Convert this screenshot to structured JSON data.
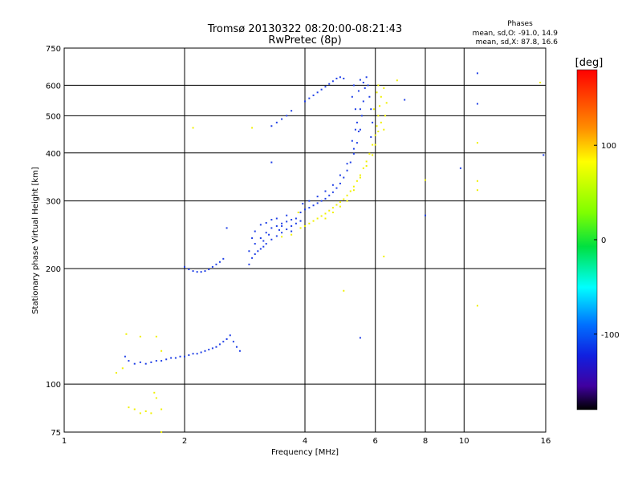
{
  "title": "Tromsø 20130322 08:20:00-08:21:43",
  "subtitle": "RwPretec (8p)",
  "stats": {
    "header": "Phases",
    "line_o": "mean, sd,O: -91.0, 14.9",
    "line_x": "mean, sd,X: 87.8, 16.6"
  },
  "colorbar": {
    "label": "[deg]",
    "min": -180,
    "max": 180,
    "tick_values": [
      100,
      0,
      -100
    ],
    "tick_labels": [
      "100",
      "0",
      "-100"
    ]
  },
  "colors": {
    "o_mode": "#1f3fe6",
    "x_mode": "#f0f000"
  },
  "chart_data": {
    "type": "scatter",
    "title": "Tromsø 20130322 08:20:00-08:21:43",
    "subtitle": "RwPretec (8p)",
    "xlabel": "Frequency [MHz]",
    "ylabel": "Stationary phase Virtual Height [km]",
    "x_scale": "log",
    "y_scale": "log",
    "xlim": [
      1,
      16
    ],
    "ylim": [
      75,
      750
    ],
    "xticks": [
      1,
      2,
      4,
      6,
      8,
      10,
      16
    ],
    "xtick_labels": [
      "1",
      "2",
      "4",
      "6",
      "8",
      "10",
      "16"
    ],
    "yticks": [
      75,
      100,
      200,
      300,
      400,
      500,
      600,
      750
    ],
    "ytick_labels": [
      "75",
      "100",
      "200",
      "300",
      "400",
      "500",
      "600",
      "750"
    ],
    "grid": true,
    "series": [
      {
        "mode": "O",
        "color": "#1f3fe6",
        "points": [
          [
            1.42,
            118
          ],
          [
            1.45,
            115
          ],
          [
            1.5,
            113
          ],
          [
            1.55,
            114
          ],
          [
            1.6,
            113
          ],
          [
            1.65,
            114
          ],
          [
            1.7,
            115
          ],
          [
            1.75,
            115
          ],
          [
            1.8,
            116
          ],
          [
            1.85,
            117
          ],
          [
            1.9,
            117
          ],
          [
            1.95,
            118
          ],
          [
            2.0,
            118
          ],
          [
            2.05,
            119
          ],
          [
            2.1,
            120
          ],
          [
            2.15,
            120
          ],
          [
            2.2,
            121
          ],
          [
            2.25,
            122
          ],
          [
            2.3,
            123
          ],
          [
            2.35,
            124
          ],
          [
            2.4,
            125
          ],
          [
            2.45,
            127
          ],
          [
            2.5,
            129
          ],
          [
            2.55,
            131
          ],
          [
            2.6,
            134
          ],
          [
            2.65,
            129
          ],
          [
            2.7,
            125
          ],
          [
            2.75,
            122
          ],
          [
            2.0,
            202
          ],
          [
            2.05,
            199
          ],
          [
            2.1,
            197
          ],
          [
            2.15,
            196
          ],
          [
            2.2,
            196
          ],
          [
            2.25,
            197
          ],
          [
            2.3,
            199
          ],
          [
            2.35,
            202
          ],
          [
            2.4,
            205
          ],
          [
            2.45,
            208
          ],
          [
            2.5,
            212
          ],
          [
            2.9,
            205
          ],
          [
            2.95,
            213
          ],
          [
            3.0,
            218
          ],
          [
            3.05,
            222
          ],
          [
            3.1,
            225
          ],
          [
            3.15,
            228
          ],
          [
            3.2,
            232
          ],
          [
            3.3,
            238
          ],
          [
            3.4,
            243
          ],
          [
            3.5,
            248
          ],
          [
            3.6,
            253
          ],
          [
            3.7,
            258
          ],
          [
            3.8,
            262
          ],
          [
            3.9,
            266
          ],
          [
            2.9,
            222
          ],
          [
            3.0,
            232
          ],
          [
            3.1,
            240
          ],
          [
            3.2,
            248
          ],
          [
            3.3,
            255
          ],
          [
            3.4,
            258
          ],
          [
            3.5,
            262
          ],
          [
            3.6,
            265
          ],
          [
            3.7,
            268
          ],
          [
            3.8,
            270
          ],
          [
            3.0,
            250
          ],
          [
            3.2,
            263
          ],
          [
            3.4,
            270
          ],
          [
            3.6,
            275
          ],
          [
            2.95,
            240
          ],
          [
            3.1,
            260
          ],
          [
            3.3,
            268
          ],
          [
            3.5,
            258
          ],
          [
            3.7,
            250
          ],
          [
            3.25,
            245
          ],
          [
            3.45,
            252
          ],
          [
            3.15,
            236
          ],
          [
            3.9,
            280
          ],
          [
            4.0,
            285
          ],
          [
            4.1,
            288
          ],
          [
            4.2,
            292
          ],
          [
            4.3,
            296
          ],
          [
            4.4,
            300
          ],
          [
            4.5,
            304
          ],
          [
            4.6,
            310
          ],
          [
            4.7,
            316
          ],
          [
            4.8,
            324
          ],
          [
            4.9,
            333
          ],
          [
            5.0,
            345
          ],
          [
            5.1,
            360
          ],
          [
            5.2,
            378
          ],
          [
            5.3,
            398
          ],
          [
            5.4,
            425
          ],
          [
            5.5,
            460
          ],
          [
            5.55,
            500
          ],
          [
            5.6,
            545
          ],
          [
            5.65,
            590
          ],
          [
            5.7,
            630
          ],
          [
            3.95,
            295
          ],
          [
            4.1,
            300
          ],
          [
            4.3,
            308
          ],
          [
            4.5,
            318
          ],
          [
            4.7,
            330
          ],
          [
            4.9,
            350
          ],
          [
            5.1,
            375
          ],
          [
            5.3,
            410
          ],
          [
            5.45,
            455
          ],
          [
            5.5,
            520
          ],
          [
            5.6,
            610
          ],
          [
            5.75,
            600
          ],
          [
            5.8,
            560
          ],
          [
            5.85,
            520
          ],
          [
            5.9,
            480
          ],
          [
            5.85,
            440
          ],
          [
            5.25,
            560
          ],
          [
            5.3,
            600
          ],
          [
            5.35,
            520
          ],
          [
            5.4,
            480
          ],
          [
            5.45,
            580
          ],
          [
            5.5,
            620
          ],
          [
            5.35,
            460
          ],
          [
            5.25,
            430
          ],
          [
            3.3,
            470
          ],
          [
            3.4,
            480
          ],
          [
            3.5,
            490
          ],
          [
            3.6,
            500
          ],
          [
            3.7,
            515
          ],
          [
            4.0,
            545
          ],
          [
            4.1,
            555
          ],
          [
            4.2,
            565
          ],
          [
            4.3,
            575
          ],
          [
            4.4,
            585
          ],
          [
            4.5,
            595
          ],
          [
            4.6,
            605
          ],
          [
            4.7,
            615
          ],
          [
            4.8,
            625
          ],
          [
            4.9,
            630
          ],
          [
            5.0,
            625
          ],
          [
            2.55,
            255
          ],
          [
            3.3,
            378
          ],
          [
            5.5,
            132
          ],
          [
            8.0,
            275
          ],
          [
            7.1,
            550
          ],
          [
            9.8,
            365
          ],
          [
            10.8,
            537
          ],
          [
            10.8,
            645
          ],
          [
            15.8,
            395
          ]
        ]
      },
      {
        "mode": "X",
        "color": "#f0f000",
        "points": [
          [
            1.4,
            110
          ],
          [
            1.45,
            87
          ],
          [
            1.5,
            86
          ],
          [
            1.55,
            84
          ],
          [
            1.6,
            85
          ],
          [
            1.65,
            84
          ],
          [
            1.7,
            92
          ],
          [
            1.75,
            86
          ],
          [
            3.9,
            255
          ],
          [
            4.0,
            258
          ],
          [
            4.1,
            262
          ],
          [
            4.2,
            266
          ],
          [
            4.3,
            270
          ],
          [
            4.4,
            274
          ],
          [
            4.5,
            278
          ],
          [
            4.6,
            283
          ],
          [
            4.7,
            288
          ],
          [
            4.8,
            293
          ],
          [
            4.9,
            298
          ],
          [
            5.0,
            303
          ],
          [
            5.1,
            310
          ],
          [
            5.2,
            318
          ],
          [
            5.3,
            327
          ],
          [
            5.4,
            338
          ],
          [
            5.5,
            350
          ],
          [
            5.6,
            365
          ],
          [
            5.7,
            380
          ],
          [
            5.8,
            398
          ],
          [
            5.9,
            420
          ],
          [
            6.0,
            445
          ],
          [
            6.05,
            470
          ],
          [
            6.1,
            500
          ],
          [
            6.15,
            530
          ],
          [
            6.2,
            560
          ],
          [
            4.5,
            270
          ],
          [
            4.7,
            280
          ],
          [
            4.9,
            290
          ],
          [
            5.1,
            300
          ],
          [
            5.3,
            320
          ],
          [
            5.5,
            345
          ],
          [
            5.7,
            370
          ],
          [
            5.9,
            395
          ],
          [
            6.0,
            420
          ],
          [
            6.1,
            455
          ],
          [
            6.2,
            480
          ],
          [
            5.95,
            520
          ],
          [
            6.05,
            575
          ],
          [
            6.1,
            600
          ],
          [
            6.3,
            590
          ],
          [
            6.4,
            540
          ],
          [
            6.35,
            500
          ],
          [
            6.3,
            460
          ],
          [
            3.85,
            280
          ],
          [
            3.7,
            245
          ],
          [
            3.5,
            242
          ],
          [
            6.3,
            215
          ],
          [
            5.0,
            175
          ],
          [
            2.1,
            465
          ],
          [
            2.95,
            465
          ],
          [
            6.8,
            618
          ],
          [
            8.0,
            340
          ],
          [
            10.8,
            425
          ],
          [
            10.8,
            338
          ],
          [
            10.8,
            320
          ],
          [
            10.8,
            160
          ],
          [
            15.5,
            610
          ],
          [
            1.75,
            75
          ],
          [
            1.68,
            95
          ],
          [
            1.43,
            135
          ],
          [
            1.55,
            133
          ],
          [
            1.7,
            133
          ],
          [
            1.75,
            122
          ],
          [
            1.35,
            107
          ]
        ]
      }
    ]
  }
}
